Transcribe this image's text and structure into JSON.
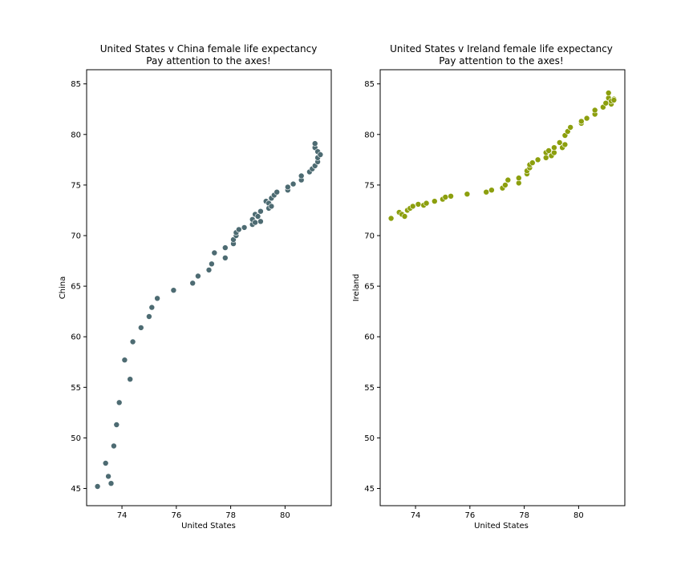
{
  "chart_data": [
    {
      "type": "scatter",
      "title": "United States v China female life expectancy",
      "subtitle": "Pay attention to the axes!",
      "xlabel": "United States",
      "ylabel": "China",
      "xlim": [
        72.7,
        81.7
      ],
      "ylim": [
        43.3,
        86.4
      ],
      "xticks": [
        "74",
        "76",
        "78",
        "80"
      ],
      "yticks": [
        "45",
        "50",
        "55",
        "60",
        "65",
        "70",
        "75",
        "80",
        "85"
      ],
      "grid": false,
      "color": "#4d6b72",
      "points": [
        [
          73.1,
          45.2
        ],
        [
          73.4,
          47.5
        ],
        [
          73.5,
          46.2
        ],
        [
          73.6,
          45.5
        ],
        [
          73.7,
          49.2
        ],
        [
          73.8,
          51.3
        ],
        [
          73.9,
          53.5
        ],
        [
          74.1,
          57.7
        ],
        [
          74.3,
          55.8
        ],
        [
          74.4,
          59.5
        ],
        [
          74.7,
          60.9
        ],
        [
          75.0,
          62.0
        ],
        [
          75.1,
          62.9
        ],
        [
          75.3,
          63.8
        ],
        [
          75.9,
          64.6
        ],
        [
          76.6,
          65.3
        ],
        [
          76.8,
          66.0
        ],
        [
          77.2,
          66.6
        ],
        [
          77.3,
          67.2
        ],
        [
          77.4,
          68.3
        ],
        [
          77.8,
          67.8
        ],
        [
          77.8,
          68.8
        ],
        [
          78.1,
          69.2
        ],
        [
          78.1,
          69.6
        ],
        [
          78.2,
          70.0
        ],
        [
          78.2,
          70.3
        ],
        [
          78.3,
          70.6
        ],
        [
          78.5,
          70.8
        ],
        [
          78.8,
          71.1
        ],
        [
          78.8,
          71.6
        ],
        [
          78.9,
          72.1
        ],
        [
          78.9,
          71.3
        ],
        [
          79.0,
          71.9
        ],
        [
          79.1,
          71.4
        ],
        [
          79.1,
          72.4
        ],
        [
          79.3,
          73.4
        ],
        [
          79.4,
          73.2
        ],
        [
          79.4,
          72.7
        ],
        [
          79.5,
          72.9
        ],
        [
          79.5,
          73.7
        ],
        [
          79.6,
          74.0
        ],
        [
          79.7,
          74.3
        ],
        [
          80.1,
          74.5
        ],
        [
          80.1,
          74.8
        ],
        [
          80.3,
          75.1
        ],
        [
          80.6,
          75.5
        ],
        [
          80.6,
          75.9
        ],
        [
          80.9,
          76.3
        ],
        [
          81.0,
          76.6
        ],
        [
          81.1,
          76.9
        ],
        [
          81.1,
          78.7
        ],
        [
          81.1,
          79.1
        ],
        [
          81.2,
          77.3
        ],
        [
          81.2,
          77.7
        ],
        [
          81.2,
          78.3
        ],
        [
          81.3,
          78.0
        ]
      ]
    },
    {
      "type": "scatter",
      "title": "United States v Ireland female life expectancy",
      "subtitle": "Pay attention to the axes!",
      "xlabel": "United States",
      "ylabel": "Ireland",
      "xlim": [
        72.7,
        81.7
      ],
      "ylim": [
        43.3,
        86.4
      ],
      "xticks": [
        "74",
        "76",
        "78",
        "80"
      ],
      "yticks": [
        "45",
        "50",
        "55",
        "60",
        "65",
        "70",
        "75",
        "80",
        "85"
      ],
      "grid": false,
      "color": "#8c9f0e",
      "points": [
        [
          73.1,
          71.7
        ],
        [
          73.4,
          72.3
        ],
        [
          73.5,
          72.1
        ],
        [
          73.6,
          71.9
        ],
        [
          73.7,
          72.5
        ],
        [
          73.8,
          72.7
        ],
        [
          73.9,
          72.9
        ],
        [
          74.1,
          73.1
        ],
        [
          74.3,
          73.0
        ],
        [
          74.4,
          73.2
        ],
        [
          74.7,
          73.4
        ],
        [
          75.0,
          73.6
        ],
        [
          75.1,
          73.8
        ],
        [
          75.3,
          73.9
        ],
        [
          75.9,
          74.1
        ],
        [
          76.6,
          74.3
        ],
        [
          76.8,
          74.5
        ],
        [
          77.2,
          74.7
        ],
        [
          77.3,
          75.0
        ],
        [
          77.4,
          75.5
        ],
        [
          77.8,
          75.2
        ],
        [
          77.8,
          75.7
        ],
        [
          78.1,
          76.1
        ],
        [
          78.1,
          76.4
        ],
        [
          78.2,
          76.7
        ],
        [
          78.2,
          77.0
        ],
        [
          78.3,
          77.2
        ],
        [
          78.5,
          77.5
        ],
        [
          78.8,
          77.7
        ],
        [
          78.8,
          78.2
        ],
        [
          78.9,
          78.4
        ],
        [
          79.0,
          77.9
        ],
        [
          79.1,
          78.2
        ],
        [
          79.1,
          78.7
        ],
        [
          79.3,
          79.2
        ],
        [
          79.4,
          78.7
        ],
        [
          79.5,
          79.0
        ],
        [
          79.5,
          79.9
        ],
        [
          79.6,
          80.3
        ],
        [
          79.7,
          80.7
        ],
        [
          80.1,
          81.1
        ],
        [
          80.1,
          81.3
        ],
        [
          80.3,
          81.6
        ],
        [
          80.6,
          82.0
        ],
        [
          80.6,
          82.4
        ],
        [
          80.9,
          82.7
        ],
        [
          81.0,
          83.1
        ],
        [
          81.1,
          83.6
        ],
        [
          81.1,
          84.1
        ],
        [
          81.2,
          83.0
        ],
        [
          81.3,
          83.5
        ],
        [
          81.2,
          83.3
        ],
        [
          81.3,
          83.4
        ]
      ]
    }
  ]
}
